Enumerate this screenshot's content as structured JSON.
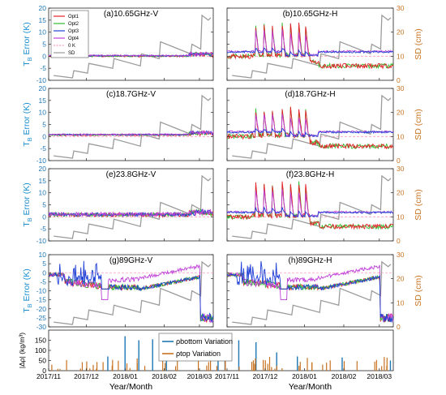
{
  "chart_data": {
    "type": "line",
    "xlabel": "Year/Month",
    "x_ticks": [
      "2017/11",
      "2017/12",
      "2018/01",
      "2018/02",
      "2018/03"
    ],
    "x_range": [
      "2017-11-01",
      "2018-03-12"
    ],
    "left_axis": {
      "label_main": "T",
      "label_sub": "B",
      "label_rest": " Error (K)",
      "color": "#1f77b4"
    },
    "right_axis": {
      "label": "SD (cm)",
      "ylim": [
        0,
        30
      ],
      "ticks": [
        0,
        10,
        20,
        30
      ],
      "color": "#c8721f"
    },
    "legend": {
      "entries": [
        "Opt1",
        "Opt2",
        "Opt3",
        "Opt4",
        "0 K",
        "SD"
      ],
      "colors": [
        "#e8202a",
        "#2fbe2f",
        "#1f3fd6",
        "#bf3fd9",
        "#ff99bb",
        "#9b9b9b"
      ]
    },
    "panels": [
      {
        "title": "(a)10.65GHz-V",
        "ylim": [
          -10,
          20
        ],
        "yticks": [
          -10,
          -5,
          0,
          5,
          10,
          15,
          20
        ]
      },
      {
        "title": "(b)10.65GHz-H",
        "ylim": [
          -10,
          20
        ],
        "yticks": [
          -10,
          -5,
          0,
          5,
          10,
          15,
          20
        ]
      },
      {
        "title": "(c)18.7GHz-V",
        "ylim": [
          -10,
          20
        ],
        "yticks": [
          -10,
          -5,
          0,
          5,
          10,
          15,
          20
        ]
      },
      {
        "title": "(d)18.7GHz-H",
        "ylim": [
          -10,
          20
        ],
        "yticks": [
          -10,
          -5,
          0,
          5,
          10,
          15,
          20
        ]
      },
      {
        "title": "(e)23.8GHz-V",
        "ylim": [
          -10,
          20
        ],
        "yticks": [
          -10,
          -5,
          0,
          5,
          10,
          15,
          20
        ]
      },
      {
        "title": "(f)23.8GHz-H",
        "ylim": [
          -10,
          20
        ],
        "yticks": [
          -10,
          -5,
          0,
          5,
          10,
          15,
          20
        ]
      },
      {
        "title": "(g)89GHz-V",
        "ylim": [
          -30,
          10
        ],
        "yticks": [
          -30,
          -25,
          -20,
          -15,
          -10,
          -5,
          0,
          5,
          10
        ]
      },
      {
        "title": "(h)89GHz-H",
        "ylim": [
          -30,
          10
        ],
        "yticks": [
          -30,
          -25,
          -20,
          -15,
          -10,
          -5,
          0,
          5,
          10
        ]
      }
    ],
    "bottom_panel": {
      "ylabel": "|Δρ| (kg/m³)",
      "ylim": [
        0,
        200
      ],
      "yticks": [
        0,
        50,
        100,
        150
      ],
      "legend": [
        "ρbottom Variation",
        "ρtop Variation"
      ],
      "colors": [
        "#1f77b4",
        "#c8721f"
      ]
    },
    "sd_series_cm": {
      "x": [
        "2017-11-05",
        "2017-11-20",
        "2017-11-21",
        "2017-12-02",
        "2017-12-03",
        "2017-12-22",
        "2017-12-23",
        "2018-01-13",
        "2018-01-14",
        "2018-01-28",
        "2018-01-29",
        "2018-02-22",
        "2018-02-23",
        "2018-03-02",
        "2018-03-03",
        "2018-03-08",
        "2018-03-10"
      ],
      "y": [
        2,
        1,
        4,
        3,
        7,
        5,
        9,
        6,
        11,
        9,
        16,
        11,
        15,
        13,
        27,
        25,
        26
      ]
    }
  }
}
